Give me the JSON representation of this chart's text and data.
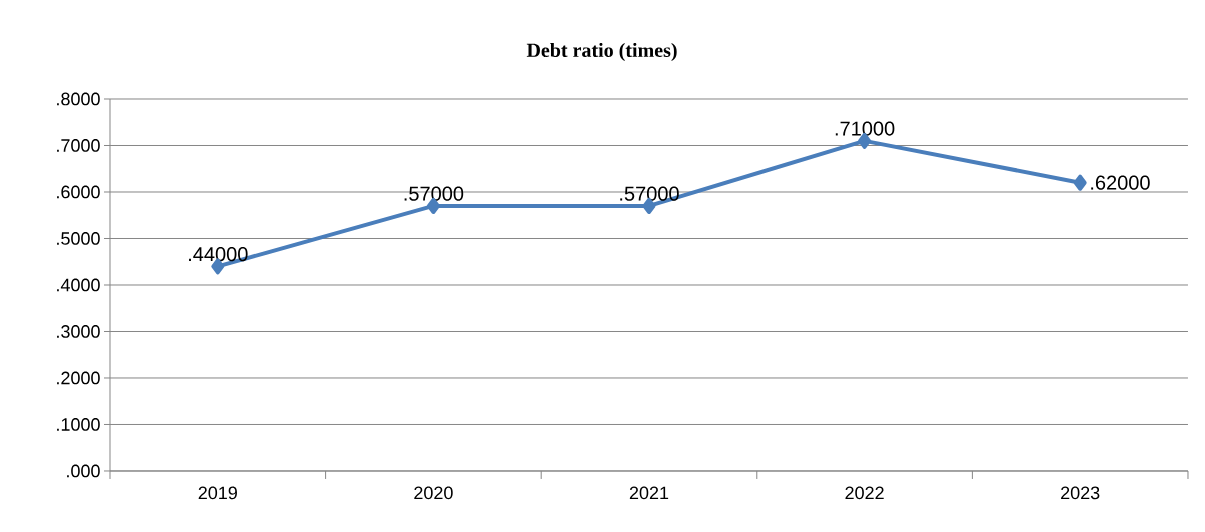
{
  "chart_data": {
    "type": "line",
    "title": "Debt ratio (times)",
    "categories": [
      "2019",
      "2020",
      "2021",
      "2022",
      "2023"
    ],
    "series": [
      {
        "color": "#4a7ebb",
        "values": [
          0.44,
          0.57,
          0.57,
          0.71,
          0.62
        ],
        "value_labels": [
          ".44000",
          ".57000",
          ".57000",
          ".71000",
          ".62000"
        ]
      }
    ],
    "ylim": [
      0,
      0.8
    ],
    "yticks": [
      {
        "value": 0,
        "label": ".000"
      },
      {
        "value": 0.1,
        "label": ".1000"
      },
      {
        "value": 0.2,
        "label": ".2000"
      },
      {
        "value": 0.3,
        "label": ".3000"
      },
      {
        "value": 0.4,
        "label": ".4000"
      },
      {
        "value": 0.5,
        "label": ".5000"
      },
      {
        "value": 0.6,
        "label": ".6000"
      },
      {
        "value": 0.7,
        "label": ".7000"
      },
      {
        "value": 0.8,
        "label": ".8000"
      }
    ],
    "grid": "y",
    "marker": "diamond",
    "line_style": "solid"
  }
}
